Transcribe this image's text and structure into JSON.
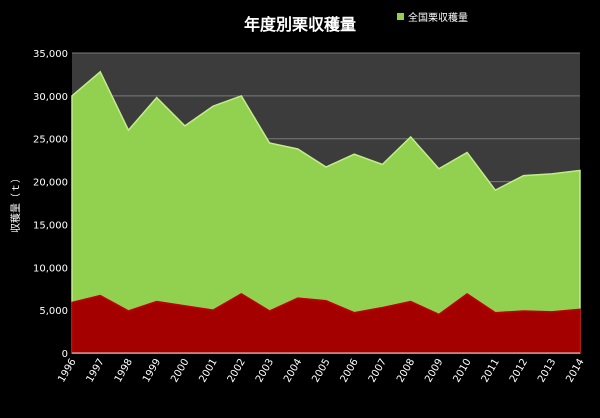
{
  "chart_data": {
    "type": "area",
    "title": "年度別栗収穫量",
    "xlabel": "",
    "ylabel": "収穫量（ｔ）",
    "ylim": [
      0,
      35000
    ],
    "yticks": [
      "0",
      "5,000",
      "10,000",
      "15,000",
      "20,000",
      "25,000",
      "30,000",
      "35,000"
    ],
    "grid": true,
    "legend_position": "top-right",
    "categories": [
      "1996",
      "1997",
      "1998",
      "1999",
      "2000",
      "2001",
      "2002",
      "2003",
      "2004",
      "2005",
      "2006",
      "2007",
      "2008",
      "2009",
      "2010",
      "2011",
      "2012",
      "2013",
      "2014"
    ],
    "series": [
      {
        "name": "全国栗収穫量",
        "color": "#92d050",
        "values": [
          30000,
          32800,
          26000,
          29800,
          26500,
          28800,
          30000,
          24500,
          23800,
          21700,
          23200,
          22000,
          25200,
          21500,
          23400,
          19000,
          20700,
          20900,
          21300
        ]
      },
      {
        "name": "",
        "color": "#a50000",
        "values": [
          5900,
          6700,
          4900,
          6000,
          5500,
          5000,
          6900,
          4900,
          6400,
          6100,
          4700,
          5300,
          6000,
          4500,
          6900,
          4700,
          4900,
          4800,
          5100
        ]
      }
    ]
  },
  "colors": {
    "background": "#000000",
    "plot_area": "#3c3c3c",
    "gridline": "#7a7a7a",
    "text": "#ffffff"
  }
}
